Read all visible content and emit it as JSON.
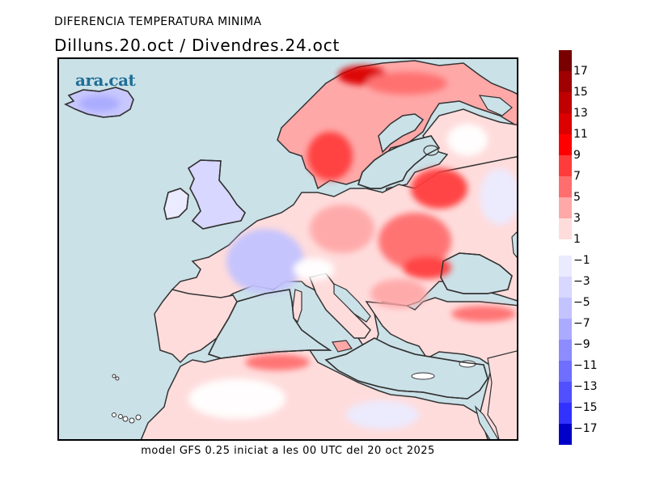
{
  "header": {
    "title": "DIFERENCIA TEMPERATURA MINIMA",
    "subtitle": "Dilluns.20.oct / Divendres.24.oct"
  },
  "footer": {
    "text": "model GFS 0.25 iniciat a les 00 UTC del 20 oct 2025"
  },
  "logo": {
    "text": "ara.cat",
    "color": "#1f6e97"
  },
  "map": {
    "region": "Europe, North Africa and Middle East",
    "variable": "Minimum temperature difference (°C)",
    "from_day": "Dilluns.20.oct",
    "to_day": "Divendres.24.oct",
    "sea_color": "#cbe1e8",
    "coast_color": "#333333",
    "highlights": [
      {
        "area": "Northern Scandinavia",
        "level": "up to +9/+11"
      },
      {
        "area": "Southern Sweden",
        "level": "+5/+7"
      },
      {
        "area": "Belarus / Ukraine",
        "level": "+5/+9"
      },
      {
        "area": "Romania / Black Sea coast",
        "level": "+7/+9"
      },
      {
        "area": "British Isles",
        "level": "-1/-3"
      },
      {
        "area": "France",
        "level": "-3/-5"
      },
      {
        "area": "Iberia / North Africa",
        "level": "+1/+3"
      },
      {
        "area": "Egypt / Libya",
        "level": "-1 to +3"
      },
      {
        "area": "Iceland",
        "level": "-3/-7"
      }
    ]
  },
  "colorbar": {
    "positive": [
      {
        "label": "17",
        "color": "#a00000"
      },
      {
        "label": "15",
        "color": "#c00000"
      },
      {
        "label": "13",
        "color": "#dc0000"
      },
      {
        "label": "11",
        "color": "#ff0000"
      },
      {
        "label": "9",
        "color": "#ff3c3c"
      },
      {
        "label": "7",
        "color": "#ff6e6e"
      },
      {
        "label": "5",
        "color": "#ffa8a8"
      },
      {
        "label": "3",
        "color": "#ffdcdc"
      },
      {
        "label": "1",
        "color": ""
      }
    ],
    "top_color": "#780000",
    "negative": [
      {
        "label": "-1",
        "color": "#ebebff"
      },
      {
        "label": "-3",
        "color": "#d7d7ff"
      },
      {
        "label": "-5",
        "color": "#c3c3ff"
      },
      {
        "label": "-7",
        "color": "#aaaaff"
      },
      {
        "label": "-9",
        "color": "#8c8cff"
      },
      {
        "label": "-11",
        "color": "#6e6eff"
      },
      {
        "label": "-13",
        "color": "#5050ff"
      },
      {
        "label": "-15",
        "color": "#3232ff"
      },
      {
        "label": "-17",
        "color": "#0000c8"
      }
    ]
  }
}
